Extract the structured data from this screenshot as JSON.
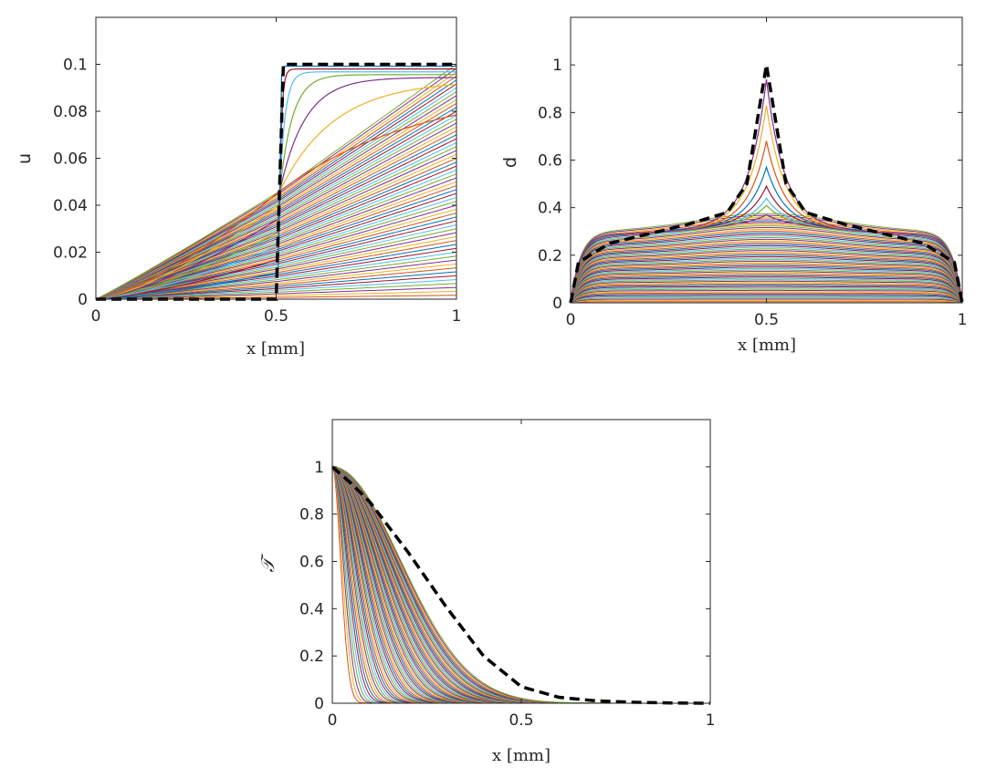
{
  "chart_data": [
    {
      "id": "u",
      "type": "line",
      "xlabel": "x [mm]",
      "ylabel": "u",
      "xlim": [
        0,
        1
      ],
      "ylim": [
        0,
        0.12
      ],
      "xticks": [
        "0",
        "0.5",
        "1"
      ],
      "xtick_values": [
        0,
        0.5,
        1
      ],
      "yticks": [
        "0",
        "0.02",
        "0.04",
        "0.06",
        "0.08",
        "0.1"
      ],
      "ytick_values": [
        0,
        0.02,
        0.04,
        0.06,
        0.08,
        0.1
      ],
      "family_count": 60,
      "family_description": "displacement profiles for successive load steps: linear growth u = 0.1*t*x before crack, then a jump at x = 0.5 forming",
      "reference_curve": {
        "style": "black dashed",
        "x": [
          0,
          0.5,
          0.51,
          0.52,
          1
        ],
        "y": [
          0,
          0,
          0.05,
          0.1,
          0.1
        ]
      },
      "grid": false,
      "legend": "none"
    },
    {
      "id": "d",
      "type": "line",
      "xlabel": "x [mm]",
      "ylabel": "d",
      "xlim": [
        0,
        1
      ],
      "ylim": [
        0,
        1.2
      ],
      "xticks": [
        "0",
        "0.5",
        "1"
      ],
      "xtick_values": [
        0,
        0.5,
        1
      ],
      "yticks": [
        "0",
        "0.2",
        "0.4",
        "0.6",
        "0.8",
        "1"
      ],
      "ytick_values": [
        0,
        0.2,
        0.4,
        0.6,
        0.8,
        1
      ],
      "family_count": 60,
      "family_description": "damage profiles for successive load steps, growing to a peak at x = 0.5",
      "reference_curve": {
        "style": "black dashed",
        "x": [
          0,
          0.02,
          0.1,
          0.2,
          0.3,
          0.4,
          0.45,
          0.5,
          0.55,
          0.6,
          0.7,
          0.8,
          0.9,
          0.98,
          1
        ],
        "y": [
          0,
          0.17,
          0.25,
          0.29,
          0.33,
          0.38,
          0.5,
          1.0,
          0.5,
          0.38,
          0.33,
          0.29,
          0.25,
          0.17,
          0
        ]
      },
      "grid": false,
      "legend": "none"
    },
    {
      "id": "T",
      "type": "line",
      "xlabel": "x [mm]",
      "ylabel": "𝒯",
      "xlim": [
        0,
        1
      ],
      "ylim": [
        0,
        1.2
      ],
      "xticks": [
        "0",
        "0.5",
        "1"
      ],
      "xtick_values": [
        0,
        0.5,
        1
      ],
      "yticks": [
        "0",
        "0.2",
        "0.4",
        "0.6",
        "0.8",
        "1"
      ],
      "ytick_values": [
        0,
        0.2,
        0.4,
        0.6,
        0.8,
        1
      ],
      "family_count": 60,
      "family_description": "temperature profiles diffusing from x = 0 for successive time steps",
      "reference_curve": {
        "style": "black dashed",
        "x": [
          0,
          0.05,
          0.1,
          0.2,
          0.3,
          0.4,
          0.5,
          0.6,
          0.7,
          0.8,
          0.9,
          1
        ],
        "y": [
          1,
          0.93,
          0.85,
          0.64,
          0.41,
          0.2,
          0.07,
          0.025,
          0.01,
          0.004,
          0.001,
          0
        ]
      },
      "grid": false,
      "legend": "none"
    }
  ],
  "palette": [
    "#0072BD",
    "#D95319",
    "#EDB120",
    "#7E2F8E",
    "#77AC30",
    "#4DBEEE",
    "#A2142F"
  ],
  "reference_color": "#000000"
}
